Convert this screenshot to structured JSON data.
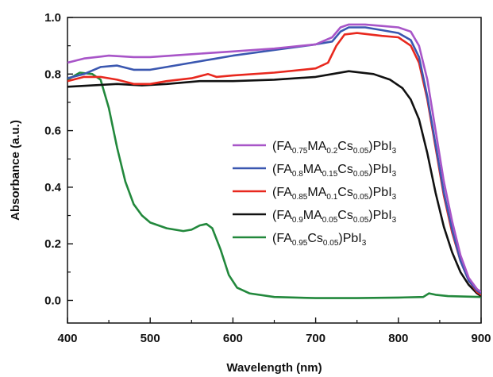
{
  "chart_data": {
    "type": "line",
    "xlabel": "Wavelength (nm)",
    "ylabel": "Absorbance (a.u.)",
    "xlim": [
      400,
      900
    ],
    "ylim": [
      -0.08,
      1.0
    ],
    "xticks": [
      "400",
      "500",
      "600",
      "700",
      "800",
      "900"
    ],
    "yticks": [
      "0.0",
      "0.2",
      "0.4",
      "0.6",
      "0.8",
      "1.0"
    ],
    "grid": false,
    "legend_position": "center-right",
    "series": [
      {
        "name": "(FA0.75MA0.2Cs0.05)PbI3",
        "label_parts": [
          [
            "(FA",
            ""
          ],
          [
            "0.75",
            "sub"
          ],
          [
            "MA",
            ""
          ],
          [
            "0.2",
            "sub"
          ],
          [
            "Cs",
            ""
          ],
          [
            "0.05",
            "sub"
          ],
          [
            ")PbI",
            ""
          ],
          [
            "3",
            "sub"
          ]
        ],
        "color": "#a855c8",
        "points": [
          [
            400,
            0.84
          ],
          [
            420,
            0.855
          ],
          [
            450,
            0.865
          ],
          [
            480,
            0.86
          ],
          [
            500,
            0.86
          ],
          [
            550,
            0.87
          ],
          [
            600,
            0.88
          ],
          [
            650,
            0.89
          ],
          [
            700,
            0.905
          ],
          [
            720,
            0.93
          ],
          [
            730,
            0.965
          ],
          [
            740,
            0.975
          ],
          [
            760,
            0.975
          ],
          [
            780,
            0.97
          ],
          [
            800,
            0.965
          ],
          [
            815,
            0.95
          ],
          [
            825,
            0.9
          ],
          [
            835,
            0.78
          ],
          [
            845,
            0.6
          ],
          [
            855,
            0.42
          ],
          [
            865,
            0.28
          ],
          [
            875,
            0.16
          ],
          [
            885,
            0.08
          ],
          [
            895,
            0.04
          ],
          [
            900,
            0.03
          ]
        ]
      },
      {
        "name": "(FA0.8MA0.15Cs0.05)PbI3",
        "label_parts": [
          [
            "(FA",
            ""
          ],
          [
            "0.8",
            "sub"
          ],
          [
            "MA",
            ""
          ],
          [
            "0.15",
            "sub"
          ],
          [
            "Cs",
            ""
          ],
          [
            "0.05",
            "sub"
          ],
          [
            ")PbI",
            ""
          ],
          [
            "3",
            "sub"
          ]
        ],
        "color": "#3a57b0",
        "points": [
          [
            400,
            0.785
          ],
          [
            420,
            0.8
          ],
          [
            440,
            0.825
          ],
          [
            460,
            0.83
          ],
          [
            480,
            0.815
          ],
          [
            500,
            0.815
          ],
          [
            520,
            0.825
          ],
          [
            550,
            0.84
          ],
          [
            580,
            0.855
          ],
          [
            600,
            0.865
          ],
          [
            650,
            0.885
          ],
          [
            700,
            0.905
          ],
          [
            720,
            0.915
          ],
          [
            730,
            0.95
          ],
          [
            740,
            0.965
          ],
          [
            760,
            0.965
          ],
          [
            780,
            0.955
          ],
          [
            800,
            0.945
          ],
          [
            815,
            0.92
          ],
          [
            825,
            0.86
          ],
          [
            835,
            0.72
          ],
          [
            845,
            0.55
          ],
          [
            855,
            0.38
          ],
          [
            865,
            0.25
          ],
          [
            875,
            0.14
          ],
          [
            885,
            0.07
          ],
          [
            895,
            0.035
          ],
          [
            900,
            0.025
          ]
        ]
      },
      {
        "name": "(FA0.85MA0.1Cs0.05)PbI3",
        "label_parts": [
          [
            "(FA",
            ""
          ],
          [
            "0.85",
            "sub"
          ],
          [
            "MA",
            ""
          ],
          [
            "0.1",
            "sub"
          ],
          [
            "Cs",
            ""
          ],
          [
            "0.05",
            "sub"
          ],
          [
            ")PbI",
            ""
          ],
          [
            "3",
            "sub"
          ]
        ],
        "color": "#e8281e",
        "points": [
          [
            400,
            0.775
          ],
          [
            420,
            0.79
          ],
          [
            440,
            0.79
          ],
          [
            460,
            0.78
          ],
          [
            480,
            0.765
          ],
          [
            500,
            0.765
          ],
          [
            520,
            0.775
          ],
          [
            550,
            0.785
          ],
          [
            570,
            0.8
          ],
          [
            580,
            0.79
          ],
          [
            600,
            0.795
          ],
          [
            650,
            0.805
          ],
          [
            700,
            0.82
          ],
          [
            715,
            0.84
          ],
          [
            725,
            0.9
          ],
          [
            735,
            0.94
          ],
          [
            750,
            0.945
          ],
          [
            780,
            0.935
          ],
          [
            800,
            0.93
          ],
          [
            815,
            0.9
          ],
          [
            825,
            0.84
          ],
          [
            835,
            0.71
          ],
          [
            845,
            0.54
          ],
          [
            855,
            0.37
          ],
          [
            865,
            0.24
          ],
          [
            875,
            0.14
          ],
          [
            885,
            0.07
          ],
          [
            895,
            0.03
          ],
          [
            900,
            0.02
          ]
        ]
      },
      {
        "name": "(FA0.9MA0.05Cs0.05)PbI3",
        "label_parts": [
          [
            "(FA",
            ""
          ],
          [
            "0.9",
            "sub"
          ],
          [
            "MA",
            ""
          ],
          [
            "0.05",
            "sub"
          ],
          [
            "Cs",
            ""
          ],
          [
            "0.05",
            "sub"
          ],
          [
            ")PbI",
            ""
          ],
          [
            "3",
            "sub"
          ]
        ],
        "color": "#111111",
        "points": [
          [
            400,
            0.755
          ],
          [
            430,
            0.76
          ],
          [
            460,
            0.765
          ],
          [
            490,
            0.76
          ],
          [
            520,
            0.765
          ],
          [
            560,
            0.775
          ],
          [
            600,
            0.775
          ],
          [
            650,
            0.78
          ],
          [
            700,
            0.79
          ],
          [
            720,
            0.8
          ],
          [
            740,
            0.81
          ],
          [
            770,
            0.8
          ],
          [
            790,
            0.78
          ],
          [
            805,
            0.75
          ],
          [
            815,
            0.71
          ],
          [
            825,
            0.64
          ],
          [
            835,
            0.52
          ],
          [
            845,
            0.38
          ],
          [
            855,
            0.26
          ],
          [
            865,
            0.17
          ],
          [
            875,
            0.1
          ],
          [
            885,
            0.055
          ],
          [
            895,
            0.025
          ],
          [
            900,
            0.015
          ]
        ]
      },
      {
        "name": "(FA0.95Cs0.05)PbI3",
        "label_parts": [
          [
            "(FA",
            ""
          ],
          [
            "0.95",
            "sub"
          ],
          [
            "Cs",
            ""
          ],
          [
            "0.05",
            "sub"
          ],
          [
            ")PbI",
            ""
          ],
          [
            "3",
            "sub"
          ]
        ],
        "color": "#22883c",
        "points": [
          [
            400,
            0.78
          ],
          [
            415,
            0.805
          ],
          [
            430,
            0.8
          ],
          [
            440,
            0.78
          ],
          [
            450,
            0.68
          ],
          [
            460,
            0.54
          ],
          [
            470,
            0.42
          ],
          [
            480,
            0.34
          ],
          [
            490,
            0.3
          ],
          [
            500,
            0.275
          ],
          [
            520,
            0.255
          ],
          [
            540,
            0.245
          ],
          [
            550,
            0.25
          ],
          [
            560,
            0.265
          ],
          [
            568,
            0.27
          ],
          [
            575,
            0.255
          ],
          [
            585,
            0.18
          ],
          [
            595,
            0.09
          ],
          [
            605,
            0.045
          ],
          [
            620,
            0.025
          ],
          [
            650,
            0.012
          ],
          [
            700,
            0.008
          ],
          [
            750,
            0.008
          ],
          [
            800,
            0.01
          ],
          [
            830,
            0.012
          ],
          [
            837,
            0.025
          ],
          [
            845,
            0.02
          ],
          [
            860,
            0.015
          ],
          [
            900,
            0.012
          ]
        ]
      }
    ]
  }
}
